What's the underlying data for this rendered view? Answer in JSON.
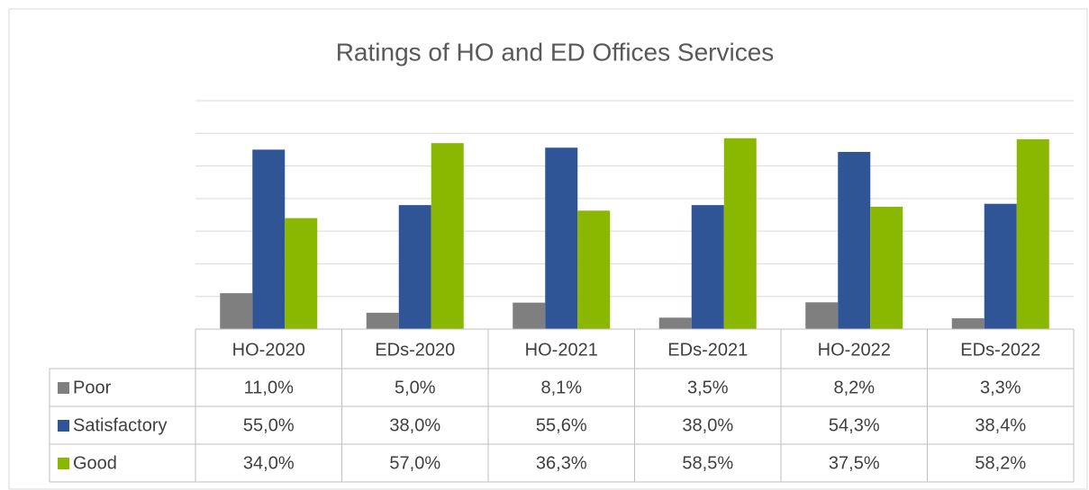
{
  "chart_data": {
    "type": "bar",
    "title": "Ratings of HO and ED Offices Services",
    "categories": [
      "HO-2020",
      "EDs-2020",
      "HO-2021",
      "EDs-2021",
      "HO-2022",
      "EDs-2022"
    ],
    "series": [
      {
        "name": "Poor",
        "color": "#7f7f7f",
        "values": [
          11.0,
          5.0,
          8.1,
          3.5,
          8.2,
          3.3
        ],
        "value_labels": [
          "11,0%",
          "5,0%",
          "8,1%",
          "3,5%",
          "8,2%",
          "3,3%"
        ]
      },
      {
        "name": "Satisfactory",
        "color": "#2f5597",
        "values": [
          55.0,
          38.0,
          55.6,
          38.0,
          54.3,
          38.4
        ],
        "value_labels": [
          "55,0%",
          "38,0%",
          "55,6%",
          "38,0%",
          "54,3%",
          "38,4%"
        ]
      },
      {
        "name": "Good",
        "color": "#8ab800",
        "values": [
          34.0,
          57.0,
          36.3,
          58.5,
          37.5,
          58.2
        ],
        "value_labels": [
          "34,0%",
          "57,0%",
          "36,3%",
          "58,5%",
          "37,5%",
          "58,2%"
        ]
      }
    ],
    "ylim": [
      0,
      70
    ],
    "yticks": [
      0,
      10,
      20,
      30,
      40,
      50,
      60,
      70
    ],
    "grid": true
  }
}
